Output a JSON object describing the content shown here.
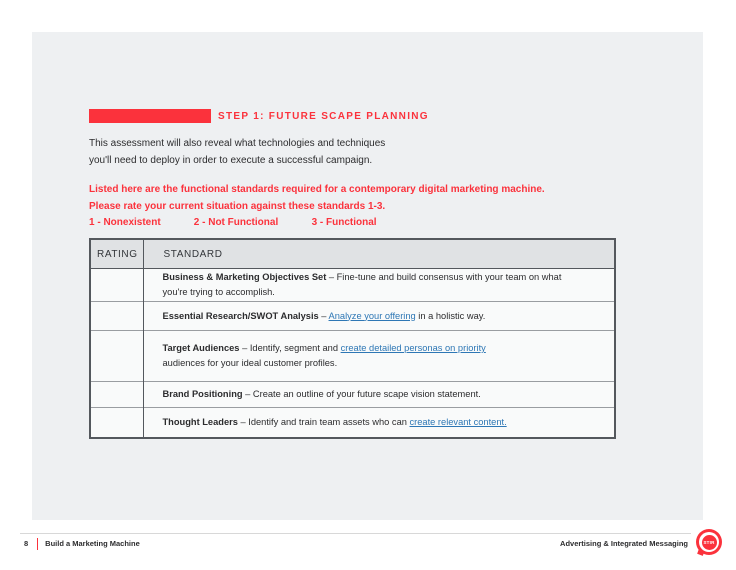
{
  "colors": {
    "accent_red": "#fb323c",
    "link_blue": "#2e77b5"
  },
  "header": {
    "step_label": "STEP 1: FUTURE SCAPE PLANNING"
  },
  "intro": {
    "line1": "This assessment will also reveal what technologies and techniques",
    "line2": "you'll need to deploy in order to execute a successful campaign."
  },
  "instructions": {
    "line1": "Listed here are the functional standards required for a contemporary digital marketing machine.",
    "line2": "Please rate your current situation against these standards 1-3.",
    "scale": [
      "1 - Nonexistent",
      "2 - Not Functional",
      "3 - Functional"
    ]
  },
  "table": {
    "headers": [
      "RATING",
      "STANDARD"
    ],
    "rows": [
      {
        "rating": "",
        "lines": [
          [
            {
              "t": "Business & Marketing Objectives Set",
              "s": "b"
            },
            {
              "t": " – Fine-tune and build consensus with your team on what",
              "s": "n"
            }
          ],
          [
            {
              "t": "you're trying to accomplish.",
              "s": "n"
            }
          ]
        ]
      },
      {
        "rating": "",
        "lines": [
          [
            {
              "t": "Essential Research/SWOT Analysis",
              "s": "b"
            },
            {
              "t": " – ",
              "s": "n"
            },
            {
              "t": "Analyze your offering",
              "s": "l"
            },
            {
              "t": " in a holistic way.",
              "s": "n"
            }
          ]
        ]
      },
      {
        "rating": "",
        "lines": [
          [
            {
              "t": "Target Audiences",
              "s": "b"
            },
            {
              "t": " – Identify, segment and ",
              "s": "n"
            },
            {
              "t": "create detailed personas on priority",
              "s": "l"
            }
          ],
          [
            {
              "t": "audiences for your ideal customer profiles.",
              "s": "n"
            }
          ]
        ]
      },
      {
        "rating": "",
        "lines": [
          [
            {
              "t": "Brand Positioning",
              "s": "b"
            },
            {
              "t": " – Create an outline of your future scape vision statement.",
              "s": "n"
            }
          ]
        ]
      },
      {
        "rating": "",
        "lines": [
          [
            {
              "t": "Thought Leaders",
              "s": "b"
            },
            {
              "t": " – Identify and train team assets who can ",
              "s": "n"
            },
            {
              "t": "create relevant content.",
              "s": "l"
            }
          ]
        ]
      }
    ]
  },
  "footer": {
    "page_number": "8",
    "doc_title": "Build a Marketing Machine",
    "section_title": "Advertising & Integrated Messaging",
    "logo_text": "STIR"
  }
}
